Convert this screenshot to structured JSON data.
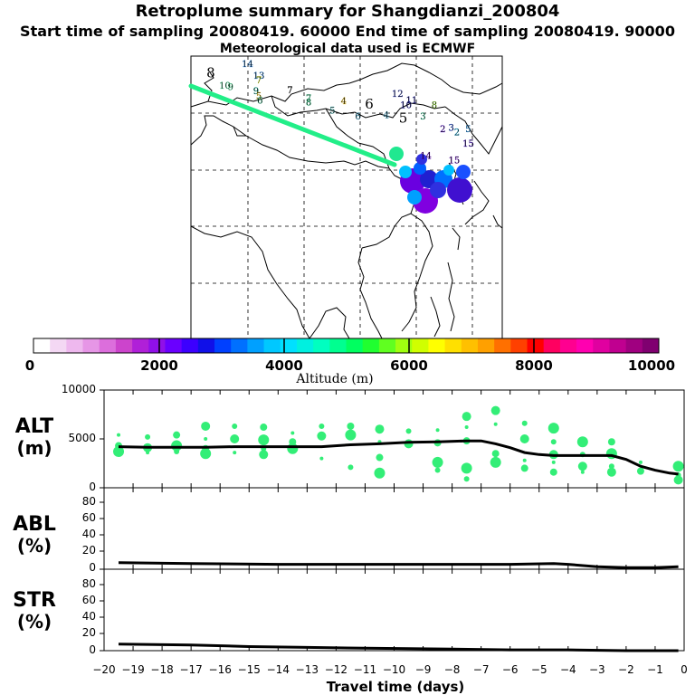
{
  "header": {
    "title": "Retroplume summary for Shangdianzi_200804",
    "sampling": "Start time of sampling 20080419. 60000     End time of sampling 20080419. 90000",
    "met": "Meteorological data used is ECMWF"
  },
  "colorbar": {
    "label": "Altitude (m)",
    "ticks": [
      "0",
      "2000",
      "4000",
      "6000",
      "8000",
      "10000"
    ],
    "colors": [
      "#ffffff",
      "#f4d8f4",
      "#eeb8ee",
      "#e696e6",
      "#dc6edc",
      "#cc44cc",
      "#b020d8",
      "#9010e8",
      "#6a00ff",
      "#3c00ff",
      "#1010e8",
      "#0040ff",
      "#0070ff",
      "#00a0ff",
      "#00c8ff",
      "#00e0ff",
      "#00f0e0",
      "#00ffc0",
      "#00ff90",
      "#00ff60",
      "#20ff30",
      "#60ff20",
      "#a0ff10",
      "#d0ff00",
      "#ffff00",
      "#ffe000",
      "#ffc000",
      "#ffa000",
      "#ff7000",
      "#ff4000",
      "#ff0000",
      "#ff0060",
      "#ff0090",
      "#ff00b0",
      "#e000a0",
      "#c00090",
      "#a00080",
      "#800070"
    ]
  },
  "map": {
    "labels": [
      {
        "t": "8",
        "lon": 78.5,
        "lat": 41.2,
        "c": "#000000",
        "big": true
      },
      {
        "t": "14",
        "lon": 85.0,
        "lat": 43.1,
        "c": "#1e90ff"
      },
      {
        "t": "13",
        "lon": 87.0,
        "lat": 41.0,
        "c": "#2090ff"
      },
      {
        "t": "7",
        "lon": 87.0,
        "lat": 40.2,
        "c": "#e6ff00"
      },
      {
        "t": "10",
        "lon": 81.0,
        "lat": 39.2,
        "c": "#55ffaa"
      },
      {
        "t": "9",
        "lon": 82.0,
        "lat": 39.0,
        "c": "#55ffaa"
      },
      {
        "t": "9",
        "lon": 86.5,
        "lat": 38.3,
        "c": "#00c0a0"
      },
      {
        "t": "5",
        "lon": 87.0,
        "lat": 37.4,
        "c": "#ffcc00"
      },
      {
        "t": "6",
        "lon": 87.2,
        "lat": 36.6,
        "c": "#30e0a0"
      },
      {
        "t": "7",
        "lon": 92.5,
        "lat": 38.4,
        "c": "#000000"
      },
      {
        "t": "7",
        "lon": 95.8,
        "lat": 37.0,
        "c": "#20e890"
      },
      {
        "t": "8",
        "lon": 95.8,
        "lat": 36.3,
        "c": "#20e890"
      },
      {
        "t": "4",
        "lon": 102.0,
        "lat": 36.5,
        "c": "#ffcc00"
      },
      {
        "t": "6",
        "lon": 106.5,
        "lat": 35.7,
        "c": "#000000",
        "big": true
      },
      {
        "t": "5",
        "lon": 100.0,
        "lat": 34.8,
        "c": "#40d0d0"
      },
      {
        "t": "6",
        "lon": 104.5,
        "lat": 33.8,
        "c": "#40c0f0"
      },
      {
        "t": "4",
        "lon": 109.5,
        "lat": 34.0,
        "c": "#40c0f0"
      },
      {
        "t": "5",
        "lon": 112.5,
        "lat": 33.2,
        "c": "#000000",
        "big": true
      },
      {
        "t": "12",
        "lon": 111.5,
        "lat": 37.8,
        "c": "#3040e0"
      },
      {
        "t": "11",
        "lon": 114.0,
        "lat": 36.7,
        "c": "#2020d0"
      },
      {
        "t": "10",
        "lon": 113.0,
        "lat": 35.8,
        "c": "#1a1ad0"
      },
      {
        "t": "8",
        "lon": 118.0,
        "lat": 35.8,
        "c": "#a0ff30"
      },
      {
        "t": "3",
        "lon": 116.0,
        "lat": 33.8,
        "c": "#30e0a0"
      },
      {
        "t": "3",
        "lon": 121.0,
        "lat": 31.8,
        "c": "#1a50ff"
      },
      {
        "t": "2",
        "lon": 122.0,
        "lat": 31.0,
        "c": "#00c0ff"
      },
      {
        "t": "2",
        "lon": 119.5,
        "lat": 31.5,
        "c": "#6000ff"
      },
      {
        "t": "5",
        "lon": 124.0,
        "lat": 31.5,
        "c": "#0090ff"
      },
      {
        "t": "15",
        "lon": 124.0,
        "lat": 29.0,
        "c": "#4000e0"
      },
      {
        "t": "15",
        "lon": 121.5,
        "lat": 26.0,
        "c": "#7000e0"
      },
      {
        "t": "14",
        "lon": 116.5,
        "lat": 26.8,
        "c": "#7000e0"
      }
    ]
  },
  "panels": {
    "alt": {
      "label1": "ALT",
      "label2": "(m)",
      "ticks": [
        "10000",
        "5000",
        "0"
      ]
    },
    "abl": {
      "label1": "ABL",
      "label2": "(%)",
      "ticks": [
        "80",
        "60",
        "40",
        "20",
        "0"
      ]
    },
    "str": {
      "label1": "STR",
      "label2": "(%)",
      "ticks": [
        "80",
        "60",
        "40",
        "20",
        "0"
      ]
    }
  },
  "xaxis": {
    "label": "Travel time (days)",
    "ticks": [
      "-20",
      "-19",
      "-18",
      "-17",
      "-16",
      "-15",
      "-14",
      "-13",
      "-12",
      "-11",
      "-10",
      "-9",
      "-8",
      "-7",
      "-6",
      "-5",
      "-4",
      "-3",
      "-2",
      "-1",
      "0"
    ]
  },
  "chart_data": {
    "type": "line",
    "x_label": "Travel time (days)",
    "xlim": [
      -20,
      0
    ],
    "series": [
      {
        "name": "ALT",
        "ylabel": "ALT (m)",
        "ylim": [
          0,
          10000
        ],
        "x": [
          -19.5,
          -18.5,
          -17.5,
          -16.5,
          -15.5,
          -14.5,
          -13.5,
          -12.5,
          -11.5,
          -10.5,
          -9.5,
          -8.5,
          -7.5,
          -7,
          -6.5,
          -6,
          -5.5,
          -5,
          -4.5,
          -4,
          -3.5,
          -3,
          -2.5,
          -2,
          -1.5,
          -1,
          -0.5,
          -0.2
        ],
        "y": [
          4200,
          4150,
          4150,
          4150,
          4200,
          4200,
          4200,
          4200,
          4400,
          4500,
          4650,
          4700,
          4800,
          4800,
          4500,
          4100,
          3600,
          3400,
          3300,
          3300,
          3300,
          3300,
          3300,
          2900,
          2200,
          1800,
          1500,
          1400
        ]
      },
      {
        "name": "ABL",
        "ylabel": "ABL (%)",
        "ylim": [
          0,
          100
        ],
        "x": [
          -19.5,
          -17,
          -14,
          -11,
          -8,
          -6,
          -4.5,
          -4,
          -3,
          -2,
          -1,
          -0.2
        ],
        "y": [
          8,
          7,
          6,
          6,
          6,
          6,
          7,
          6,
          3,
          2,
          2,
          3
        ]
      },
      {
        "name": "STR",
        "ylabel": "STR (%)",
        "ylim": [
          0,
          100
        ],
        "x": [
          -19.5,
          -17,
          -15,
          -13,
          -11,
          -8,
          -6,
          -4,
          -2,
          -0.2
        ],
        "y": [
          8,
          7,
          5,
          4,
          3,
          2,
          1,
          1,
          0,
          0
        ]
      }
    ],
    "alt_points": [
      {
        "x": -19.5,
        "y": 5400
      },
      {
        "x": -19.5,
        "y": 4300
      },
      {
        "x": -19.5,
        "y": 3700
      },
      {
        "x": -18.5,
        "y": 5200
      },
      {
        "x": -18.5,
        "y": 4100
      },
      {
        "x": -18.5,
        "y": 3600
      },
      {
        "x": -17.5,
        "y": 5400
      },
      {
        "x": -17.5,
        "y": 4300
      },
      {
        "x": -17.5,
        "y": 3700
      },
      {
        "x": -16.5,
        "y": 6300
      },
      {
        "x": -16.5,
        "y": 5000
      },
      {
        "x": -16.5,
        "y": 4000
      },
      {
        "x": -16.5,
        "y": 3500
      },
      {
        "x": -15.5,
        "y": 6300
      },
      {
        "x": -15.5,
        "y": 5000
      },
      {
        "x": -15.5,
        "y": 3600
      },
      {
        "x": -14.5,
        "y": 6200
      },
      {
        "x": -14.5,
        "y": 4900
      },
      {
        "x": -14.5,
        "y": 4000
      },
      {
        "x": -14.5,
        "y": 3400
      },
      {
        "x": -13.5,
        "y": 5600
      },
      {
        "x": -13.5,
        "y": 4700
      },
      {
        "x": -13.5,
        "y": 4000
      },
      {
        "x": -12.5,
        "y": 6300
      },
      {
        "x": -12.5,
        "y": 5300
      },
      {
        "x": -12.5,
        "y": 3000
      },
      {
        "x": -11.5,
        "y": 6300
      },
      {
        "x": -11.5,
        "y": 5400
      },
      {
        "x": -11.5,
        "y": 2100
      },
      {
        "x": -10.5,
        "y": 6000
      },
      {
        "x": -10.5,
        "y": 4700
      },
      {
        "x": -10.5,
        "y": 3100
      },
      {
        "x": -10.5,
        "y": 1500
      },
      {
        "x": -9.5,
        "y": 5800
      },
      {
        "x": -9.5,
        "y": 4500
      },
      {
        "x": -8.5,
        "y": 5900
      },
      {
        "x": -8.5,
        "y": 4600
      },
      {
        "x": -8.5,
        "y": 2600
      },
      {
        "x": -8.5,
        "y": 1800
      },
      {
        "x": -7.5,
        "y": 7300
      },
      {
        "x": -7.5,
        "y": 6200
      },
      {
        "x": -7.5,
        "y": 4800
      },
      {
        "x": -7.5,
        "y": 2000
      },
      {
        "x": -7.5,
        "y": 900
      },
      {
        "x": -6.5,
        "y": 7900
      },
      {
        "x": -6.5,
        "y": 6500
      },
      {
        "x": -6.5,
        "y": 3500
      },
      {
        "x": -6.5,
        "y": 2600
      },
      {
        "x": -5.5,
        "y": 6600
      },
      {
        "x": -5.5,
        "y": 5000
      },
      {
        "x": -5.5,
        "y": 2800
      },
      {
        "x": -5.5,
        "y": 2000
      },
      {
        "x": -4.5,
        "y": 6100
      },
      {
        "x": -4.5,
        "y": 4700
      },
      {
        "x": -4.5,
        "y": 3400
      },
      {
        "x": -4.5,
        "y": 2600
      },
      {
        "x": -4.5,
        "y": 1600
      },
      {
        "x": -3.5,
        "y": 4700
      },
      {
        "x": -3.5,
        "y": 3400
      },
      {
        "x": -3.5,
        "y": 2200
      },
      {
        "x": -3.5,
        "y": 1600
      },
      {
        "x": -2.5,
        "y": 4700
      },
      {
        "x": -2.5,
        "y": 3500
      },
      {
        "x": -2.5,
        "y": 2200
      },
      {
        "x": -2.5,
        "y": 1600
      },
      {
        "x": -1.5,
        "y": 2600
      },
      {
        "x": -1.5,
        "y": 1700
      },
      {
        "x": -0.2,
        "y": 2200
      },
      {
        "x": -0.2,
        "y": 1300
      },
      {
        "x": -0.2,
        "y": 800
      }
    ]
  }
}
